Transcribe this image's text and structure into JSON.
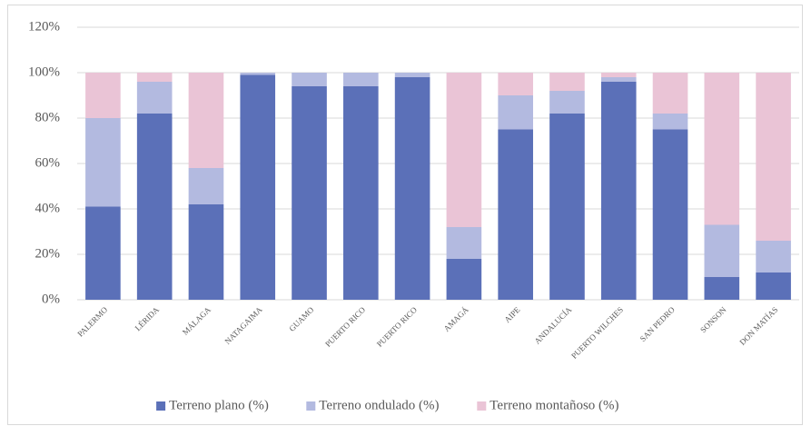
{
  "chart_data": {
    "type": "stacked_bar",
    "categories": [
      "PALERMO",
      "LÉRIDA",
      "MÁLAGA",
      "NATAGAIMA",
      "GUAMO",
      "PUERTO RICO",
      "PUERTO RICO",
      "AMAGÁ",
      "AIPE",
      "ANDALUCÍA",
      "PUERTO WILCHES",
      "SAN PEDRO",
      "SONSON",
      "DON MATÍAS"
    ],
    "series": [
      {
        "name": "Terreno plano (%)",
        "color": "#5b70b8",
        "values": [
          41,
          82,
          42,
          99,
          94,
          94,
          98,
          18,
          75,
          82,
          96,
          75,
          10,
          12
        ]
      },
      {
        "name": "Terreno ondulado (%)",
        "color": "#b3bae0",
        "values": [
          39,
          14,
          16,
          1,
          6,
          6,
          2,
          14,
          15,
          10,
          2,
          7,
          23,
          14
        ]
      },
      {
        "name": "Terreno montañoso (%)",
        "color": "#eac4d6",
        "values": [
          20,
          4,
          42,
          0,
          0,
          0,
          0,
          68,
          10,
          8,
          2,
          18,
          67,
          74
        ]
      }
    ],
    "ylim": [
      0,
      120
    ],
    "yticks": [
      {
        "value": 0,
        "label": "0%"
      },
      {
        "value": 20,
        "label": "20%"
      },
      {
        "value": 40,
        "label": "40%"
      },
      {
        "value": 60,
        "label": "60%"
      },
      {
        "value": 80,
        "label": "80%"
      },
      {
        "value": 100,
        "label": "100%"
      },
      {
        "value": 120,
        "label": "120%"
      }
    ],
    "grid": true,
    "legend": "bottom"
  }
}
